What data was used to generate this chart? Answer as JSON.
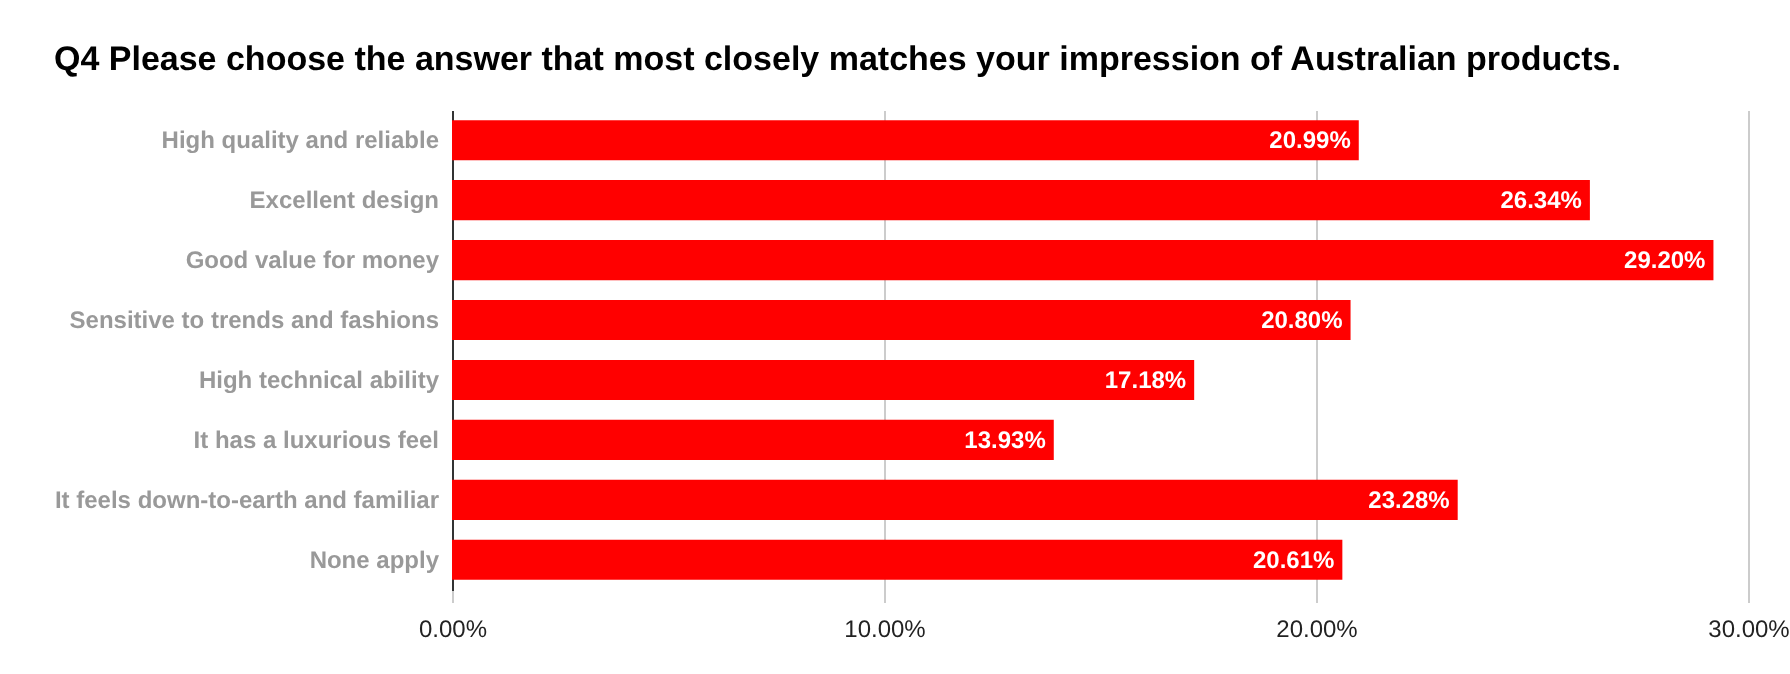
{
  "chart_data": {
    "type": "bar",
    "orientation": "horizontal",
    "title": "Q4 Please choose the answer that most closely matches your impression of Australian products.",
    "categories": [
      "High quality and reliable",
      "Excellent design",
      "Good value for money",
      "Sensitive to trends and fashions",
      "High technical ability",
      "It has a luxurious feel",
      "It feels down-to-earth and familiar",
      "None apply"
    ],
    "values": [
      20.99,
      26.34,
      29.2,
      20.8,
      17.18,
      13.93,
      23.28,
      20.61
    ],
    "value_labels": [
      "20.99%",
      "26.34%",
      "29.20%",
      "20.80%",
      "17.18%",
      "13.93%",
      "23.28%",
      "20.61%"
    ],
    "color": "#ff0000",
    "xlim": [
      0,
      30
    ],
    "xticks": [
      {
        "value": 0,
        "label": "0.00%"
      },
      {
        "value": 10,
        "label": "10.00%"
      },
      {
        "value": 20,
        "label": "20.00%"
      },
      {
        "value": 30,
        "label": "30.00%"
      }
    ],
    "grid": "x"
  }
}
